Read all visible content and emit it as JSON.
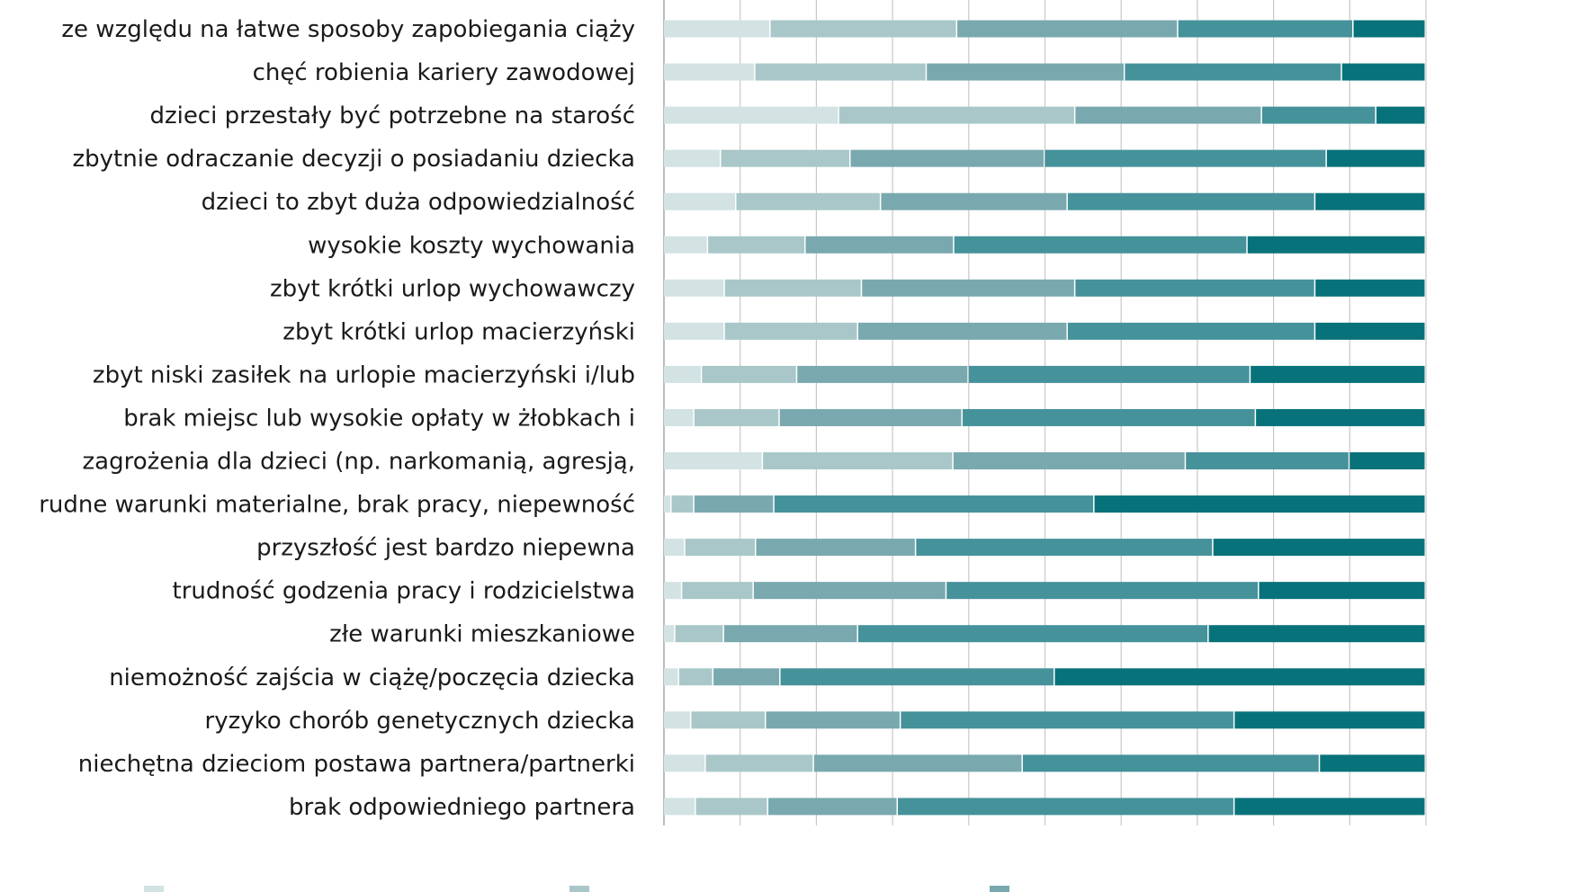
{
  "chart_data": {
    "type": "bar",
    "orientation": "horizontal",
    "stacked": true,
    "percent_stacked": true,
    "xlim": [
      0,
      100
    ],
    "grid": true,
    "legend_position": "bottom",
    "categories": [
      "ze względu na łatwe sposoby zapobiegania ciąży",
      "chęć robienia kariery zawodowej",
      "dzieci przestały być potrzebne na starość",
      "zbytnie odraczanie decyzji o posiadaniu dziecka",
      "dzieci to zbyt duża odpowiedzialność",
      "wysokie koszty wychowania",
      "zbyt krótki urlop wychowawczy",
      "zbyt krótki urlop macierzyński",
      "zbyt niski zasiłek na urlopie macierzyński i/lub",
      "brak miejsc lub wysokie opłaty w żłobkach i",
      "zagrożenia dla dzieci (np. narkomanią, agresją,",
      "rudne warunki materialne, brak pracy, niepewność",
      "przyszłość jest bardzo niepewna",
      "trudność godzenia pracy i rodzicielstwa",
      "złe warunki mieszkaniowe",
      "niemożność zajścia w ciążę/poczęcia dziecka",
      "ryzyko chorób genetycznych dziecka",
      "niechętna dzieciom postawa partnera/partnerki",
      "brak odpowiedniego partnera"
    ],
    "series": [
      {
        "color": "#d3e2e2",
        "values": [
          14,
          12,
          23,
          7.5,
          9.5,
          5.8,
          8,
          8,
          5,
          4,
          13,
          1,
          2.8,
          2.4,
          1.5,
          2,
          3.6,
          5.5,
          4.2
        ]
      },
      {
        "color": "#a9c7c9",
        "values": [
          24.5,
          22.5,
          31,
          17,
          19,
          12.8,
          18,
          17.5,
          12.5,
          11.2,
          25,
          3,
          9.3,
          9.4,
          6.4,
          4.5,
          9.8,
          14.2,
          9.5
        ]
      },
      {
        "color": "#79a9ae",
        "values": [
          29,
          26,
          24.5,
          25.5,
          24.5,
          19.5,
          28,
          27.5,
          22.5,
          24,
          30.5,
          10.5,
          21,
          25.3,
          17.6,
          8.8,
          17.7,
          27.4,
          17
        ]
      },
      {
        "color": "#45929a",
        "values": [
          23,
          28.5,
          15,
          37,
          32.5,
          38.5,
          31.5,
          32.5,
          37,
          38.5,
          21.5,
          42,
          39,
          41,
          46,
          36,
          43.8,
          39,
          44.2
        ]
      },
      {
        "color": "#08727a",
        "values": [
          9.5,
          11,
          6.5,
          13,
          14.5,
          23.4,
          14.5,
          14.5,
          23,
          22.3,
          10,
          43.5,
          27.9,
          21.9,
          28.5,
          48.7,
          25.1,
          13.9,
          25.1
        ]
      }
    ]
  },
  "top_partial_label": "",
  "legend": {
    "items": [
      {
        "label": "",
        "color": "#d3e2e2"
      },
      {
        "label": "",
        "color": "#a9c7c9"
      },
      {
        "label": "",
        "color": "#79a9ae"
      }
    ]
  }
}
